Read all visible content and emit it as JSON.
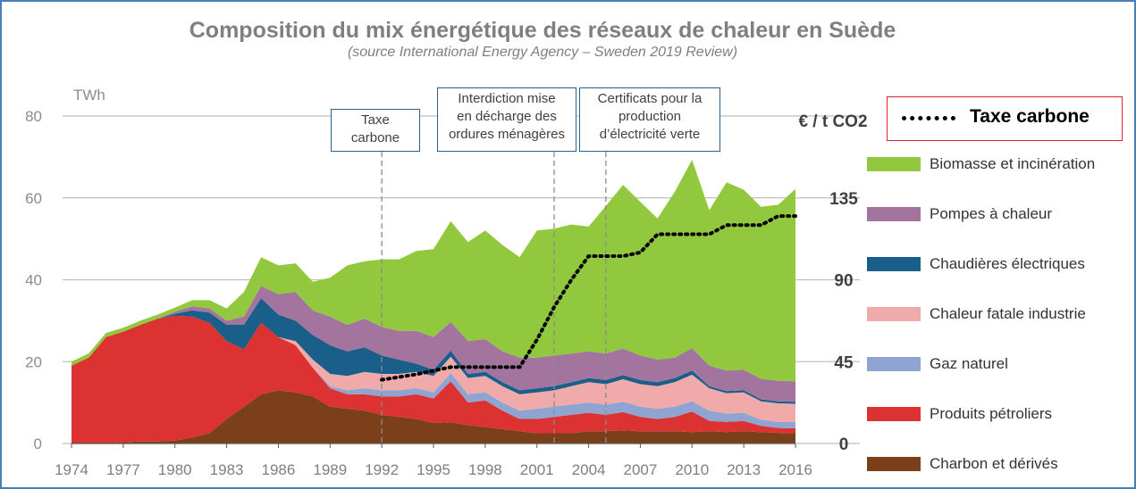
{
  "chart_data": {
    "type": "area",
    "title": "Composition du mix énergétique des réseaux de chaleur en Suède",
    "subtitle": "(source International Energy Agency – Sweden 2019 Review)",
    "ylabel": "TWh",
    "y2label": "€ / t CO2",
    "ylim": [
      0,
      80
    ],
    "y2lim": [
      0,
      180
    ],
    "yticks": [
      "0",
      "20",
      "40",
      "60",
      "80"
    ],
    "y2ticks": [
      "0",
      "45",
      "90",
      "135"
    ],
    "xticks": [
      "1974",
      "1977",
      "1980",
      "1983",
      "1986",
      "1989",
      "1992",
      "1995",
      "1998",
      "2001",
      "2004",
      "2007",
      "2010",
      "2013",
      "2016"
    ],
    "x": [
      1974,
      1975,
      1976,
      1977,
      1978,
      1979,
      1980,
      1981,
      1982,
      1983,
      1984,
      1985,
      1986,
      1987,
      1988,
      1989,
      1990,
      1991,
      1992,
      1993,
      1994,
      1995,
      1996,
      1997,
      1998,
      1999,
      2000,
      2001,
      2002,
      2003,
      2004,
      2005,
      2006,
      2007,
      2008,
      2009,
      2010,
      2011,
      2012,
      2013,
      2014,
      2015,
      2016
    ],
    "series": [
      {
        "name": "Charbon et dérivés",
        "color": "#7b3f1a",
        "values": [
          0,
          0,
          0,
          0.3,
          0.5,
          0.5,
          0.7,
          1.5,
          2.5,
          6,
          9,
          12,
          13,
          12.5,
          11.5,
          9,
          8.5,
          8,
          7,
          6.5,
          6,
          5,
          5.2,
          4.5,
          4,
          3.5,
          3,
          2.5,
          2.5,
          2.5,
          3,
          3,
          3.2,
          3,
          3,
          3,
          2.8,
          3,
          2.8,
          3,
          2.8,
          2.6,
          2.5
        ]
      },
      {
        "name": "Produits pétroliers",
        "color": "#dc3232",
        "values": [
          19,
          21,
          26,
          27,
          28.5,
          30,
          30.5,
          29.5,
          27,
          19,
          14,
          17.5,
          13,
          11.5,
          7,
          4.5,
          3.5,
          4,
          4.5,
          5,
          6,
          6,
          10,
          5.5,
          6.5,
          4.5,
          3,
          3.5,
          4,
          4.5,
          4.5,
          4,
          4.5,
          3.5,
          3,
          3.5,
          5,
          2.5,
          2.5,
          2.5,
          1.5,
          1.2,
          1.2
        ]
      },
      {
        "name": "Gaz naturel",
        "color": "#8fa4d0",
        "values": [
          0,
          0,
          0,
          0,
          0,
          0,
          0,
          0,
          0,
          0,
          0,
          0,
          0,
          0,
          0,
          0.5,
          1,
          1.5,
          1.5,
          1.5,
          1.5,
          1.5,
          2,
          2,
          2,
          2,
          2,
          2.5,
          2.5,
          2.5,
          2.5,
          2.5,
          2.5,
          2.5,
          2.5,
          2.5,
          2.5,
          2.5,
          2,
          2,
          1.5,
          1.5,
          1.5
        ]
      },
      {
        "name": "Chaleur fatale industrie",
        "color": "#f0aaaa",
        "values": [
          0,
          0,
          0,
          0,
          0,
          0,
          0,
          0,
          0,
          0,
          0,
          0,
          0,
          1,
          2,
          3,
          3.5,
          4,
          4,
          4,
          4,
          4,
          4,
          4,
          4,
          4,
          4,
          4,
          4,
          4.5,
          5,
          5,
          5.5,
          5.5,
          5.5,
          6,
          6.5,
          5.5,
          5,
          5,
          4.5,
          4.5,
          4.5
        ]
      },
      {
        "name": "Chaudières électriques",
        "color": "#1a5e8a",
        "values": [
          0,
          0,
          0,
          0,
          0,
          0,
          0.5,
          1.5,
          2.5,
          4,
          6,
          6,
          5.5,
          5,
          6,
          7,
          6,
          6,
          4.5,
          3.5,
          2,
          1.5,
          1.5,
          1,
          1,
          1,
          1,
          1,
          1,
          1,
          1,
          1,
          1,
          1,
          1,
          1,
          1,
          0.5,
          0.5,
          0.5,
          0.5,
          0.5,
          0.5
        ]
      },
      {
        "name": "Pompes à chaleur",
        "color": "#a3749e",
        "values": [
          0,
          0,
          0,
          0,
          0,
          0,
          0.5,
          1,
          1,
          1,
          2,
          3,
          5,
          7,
          6,
          7,
          6.5,
          7,
          7,
          7,
          8,
          8,
          7,
          8,
          8,
          7.5,
          8,
          7.5,
          7.5,
          7,
          6.5,
          6.5,
          6.5,
          6,
          5.5,
          5,
          5.5,
          5,
          5,
          5,
          5,
          5,
          5
        ]
      },
      {
        "name": "Biomasse et incinération",
        "color": "#92c83e",
        "values": [
          1,
          1,
          1,
          1,
          1,
          1,
          1,
          1.5,
          2,
          3,
          6,
          7,
          7,
          7,
          7,
          9.5,
          14.5,
          14,
          16.5,
          17.5,
          19.5,
          21.5,
          24.6,
          24.2,
          26.5,
          26,
          24.5,
          31,
          31,
          31.5,
          30.5,
          36,
          40,
          37.5,
          34.5,
          40.5,
          46,
          38,
          46,
          44,
          42,
          43,
          47
        ]
      }
    ],
    "carbon_tax": {
      "name": "Taxe carbone",
      "color": "#000000",
      "x": [
        1992,
        1994,
        1995,
        1996,
        1997,
        1998,
        1999,
        2000,
        2001,
        2002,
        2003,
        2004,
        2005,
        2006,
        2007,
        2008,
        2009,
        2010,
        2011,
        2012,
        2013,
        2014,
        2015,
        2016
      ],
      "values": [
        35,
        38,
        40,
        42,
        42,
        42,
        42,
        42,
        57,
        75,
        90,
        103,
        103,
        103,
        105,
        115,
        115,
        115,
        115,
        120,
        120,
        120,
        125,
        125
      ]
    },
    "annotations": [
      {
        "year": 1992,
        "lines": [
          "Taxe",
          "carbone"
        ]
      },
      {
        "year": 2002,
        "lines": [
          "Interdiction mise",
          "en décharge des",
          "ordures ménagères"
        ]
      },
      {
        "year": 2005,
        "lines": [
          "Certificats pour la",
          "production",
          "d’électricité verte"
        ]
      }
    ],
    "legend_labels": [
      "Biomasse et incinération",
      "Pompes à chaleur",
      "Chaudières électriques",
      "Chaleur fatale industrie",
      "Gaz naturel",
      "Produits pétroliers",
      "Charbon et dérivés"
    ],
    "legend_colors": [
      "#92c83e",
      "#a3749e",
      "#1a5e8a",
      "#f0aaaa",
      "#8fa4d0",
      "#dc3232",
      "#7b3f1a"
    ]
  }
}
